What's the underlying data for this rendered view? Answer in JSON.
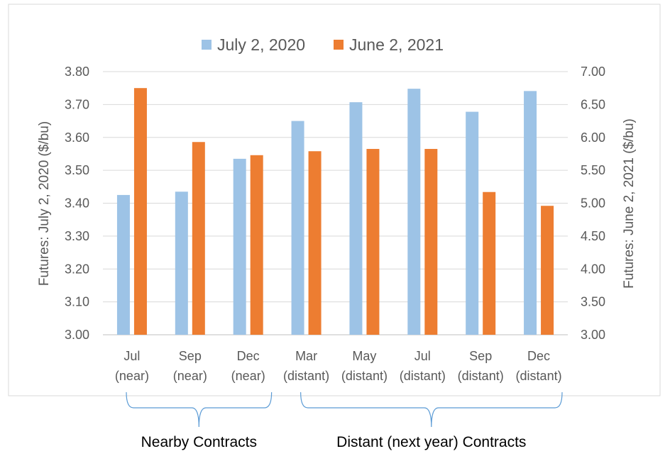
{
  "chart_data": {
    "type": "bar",
    "categories": [
      [
        "Jul",
        "(near)"
      ],
      [
        "Sep",
        "(near)"
      ],
      [
        "Dec",
        "(near)"
      ],
      [
        "Mar",
        "(distant)"
      ],
      [
        "May",
        "(distant)"
      ],
      [
        "Jul",
        "(distant)"
      ],
      [
        "Sep",
        "(distant)"
      ],
      [
        "Dec",
        "(distant)"
      ]
    ],
    "series": [
      {
        "name": "July 2, 2020",
        "axis": "left",
        "color": "#9DC3E6",
        "values": [
          3.425,
          3.435,
          3.535,
          3.65,
          3.707,
          3.748,
          3.678,
          3.741
        ]
      },
      {
        "name": "June 2, 2021",
        "axis": "right",
        "color": "#ED7D31",
        "values": [
          6.75,
          5.93,
          5.73,
          5.79,
          5.825,
          5.825,
          5.17,
          4.96
        ]
      }
    ],
    "left_axis": {
      "label": "Futures: July 2, 2020 ($/bu)",
      "ylim": [
        3.0,
        3.8
      ],
      "ticks": [
        "3.00",
        "3.10",
        "3.20",
        "3.30",
        "3.40",
        "3.50",
        "3.60",
        "3.70",
        "3.80"
      ]
    },
    "right_axis": {
      "label": "Futures: June 2, 2021 ($/bu)",
      "ylim": [
        3.0,
        7.0
      ],
      "ticks": [
        "3.00",
        "3.50",
        "4.00",
        "4.50",
        "5.00",
        "5.50",
        "6.00",
        "6.50",
        "7.00"
      ]
    },
    "grid": true,
    "legend_position": "top",
    "groups": [
      {
        "label": "Nearby Contracts",
        "from": 0,
        "to": 2
      },
      {
        "label": "Distant (next year) Contracts",
        "from": 3,
        "to": 7
      }
    ]
  }
}
